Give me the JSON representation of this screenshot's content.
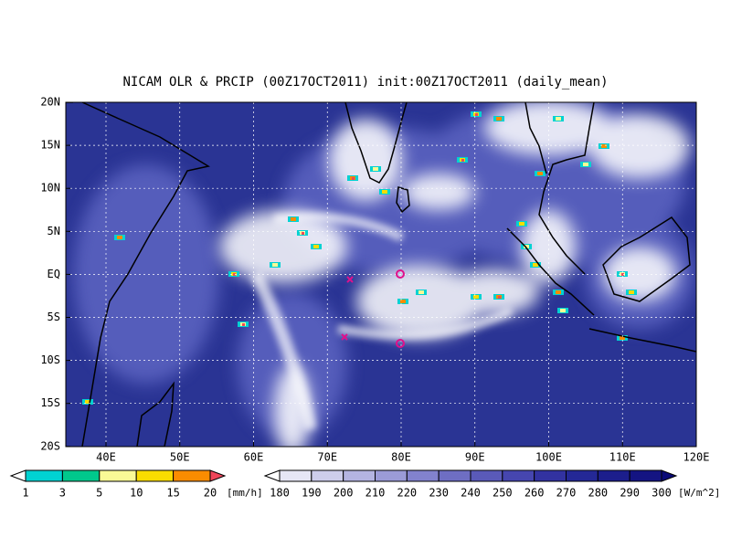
{
  "header": {
    "title": "NICAM OLR & PRCIP (00Z17OCT2011) init:00Z17OCT2011 (daily_mean)"
  },
  "map": {
    "lat_labels": [
      "20N",
      "15N",
      "10N",
      "5N",
      "EQ",
      "5S",
      "10S",
      "15S",
      "20S"
    ],
    "lon_labels": [
      "40E",
      "50E",
      "60E",
      "70E",
      "80E",
      "90E",
      "100E",
      "110E",
      "120E"
    ]
  },
  "precip_colorbar": {
    "labels": [
      "1",
      "3",
      "5",
      "10",
      "15",
      "20"
    ],
    "unit": "[mm/h]",
    "colors": [
      "#ffffff",
      "#00d2d2",
      "#00c88c",
      "#fafa96",
      "#fadc00",
      "#fa8c00",
      "#f0465a"
    ]
  },
  "olr_colorbar": {
    "labels": [
      "180",
      "190",
      "200",
      "210",
      "220",
      "230",
      "240",
      "250",
      "260",
      "270",
      "280",
      "290",
      "300"
    ],
    "unit": "[W/m^2]",
    "colors": [
      "#ffffff",
      "#e6e6f5",
      "#cdcdeb",
      "#b4b4e1",
      "#9b9bd7",
      "#8282cd",
      "#6e6ec3",
      "#5a5ab9",
      "#4646af",
      "#3232a0",
      "#242896",
      "#1c1e8c",
      "#141482",
      "#0a0a78"
    ]
  }
}
